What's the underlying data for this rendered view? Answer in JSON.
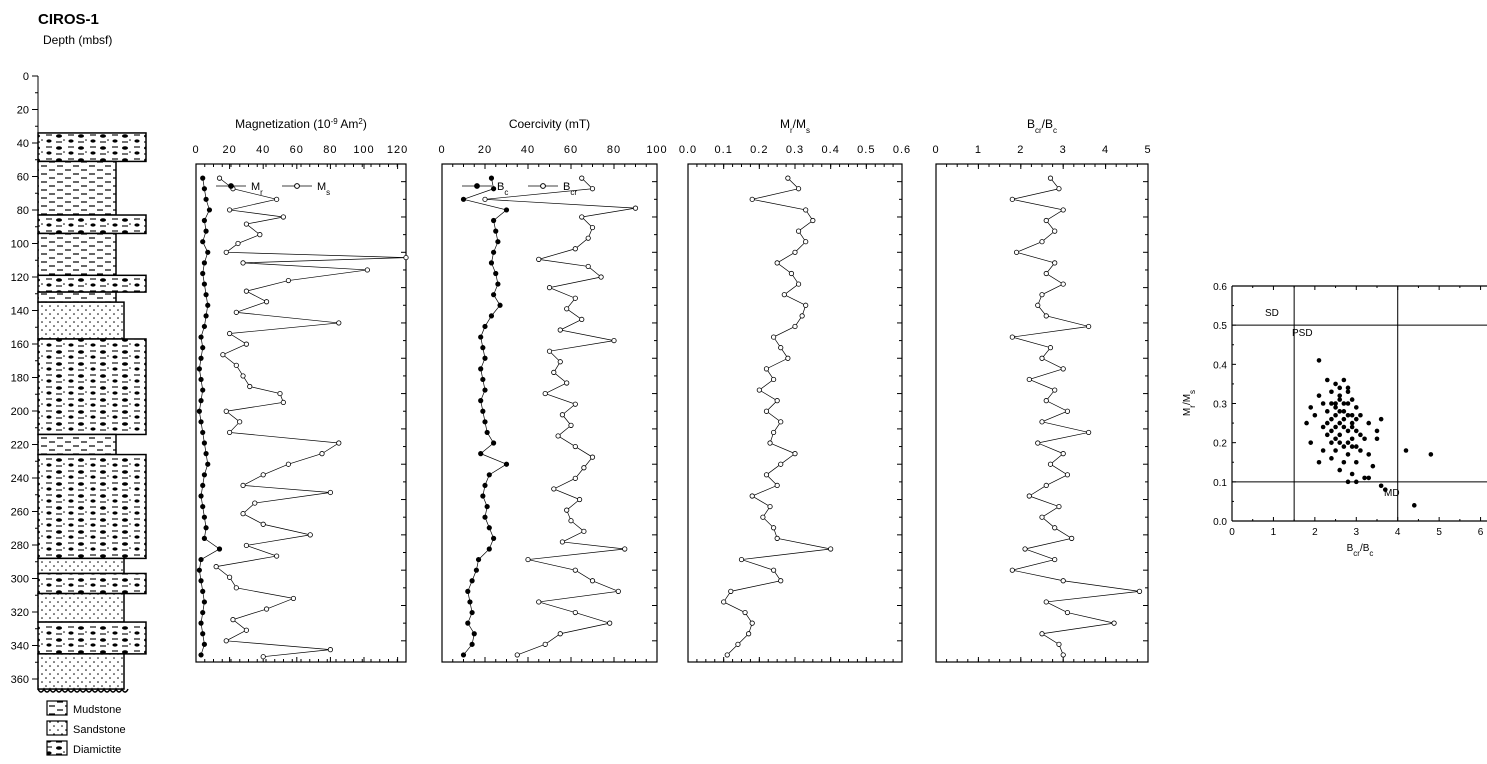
{
  "figure": {
    "site": "CIROS-1",
    "depth_label": "Depth (mbsf)",
    "depth_ticks": [
      "0",
      "20",
      "40",
      "60",
      "80",
      "100",
      "120",
      "140",
      "160",
      "180",
      "200",
      "220",
      "240",
      "260",
      "280",
      "300",
      "320",
      "340",
      "360"
    ]
  },
  "lithology": {
    "legend": [
      "Mudstone",
      "Sandstone",
      "Diamictite"
    ],
    "units": [
      {
        "top": 34,
        "bottom": 51,
        "type": "Diamictite"
      },
      {
        "top": 51,
        "bottom": 83,
        "type": "Mudstone"
      },
      {
        "top": 83,
        "bottom": 94,
        "type": "Diamictite"
      },
      {
        "top": 94,
        "bottom": 119,
        "type": "Mudstone"
      },
      {
        "top": 119,
        "bottom": 129,
        "type": "Diamictite"
      },
      {
        "top": 129,
        "bottom": 135,
        "type": "Mudstone"
      },
      {
        "top": 135,
        "bottom": 157,
        "type": "Sandstone"
      },
      {
        "top": 157,
        "bottom": 214,
        "type": "Diamictite"
      },
      {
        "top": 214,
        "bottom": 226,
        "type": "Mudstone"
      },
      {
        "top": 226,
        "bottom": 288,
        "type": "Diamictite"
      },
      {
        "top": 288,
        "bottom": 297,
        "type": "Sandstone"
      },
      {
        "top": 297,
        "bottom": 309,
        "type": "Diamictite"
      },
      {
        "top": 309,
        "bottom": 326,
        "type": "Sandstone"
      },
      {
        "top": 326,
        "bottom": 345,
        "type": "Diamictite"
      },
      {
        "top": 345,
        "bottom": 366,
        "type": "Sandstone"
      }
    ]
  },
  "chart_data": [
    {
      "type": "line",
      "title_html": "Magnetization",
      "title": "Magnetization (10-9 Am2)",
      "title_parts": {
        "main": "Magnetization  (10",
        "exp1": "-9",
        "mid": " Am",
        "exp2": "2",
        "end": ")"
      },
      "xlim": [
        0,
        125
      ],
      "x_ticks": [
        "0",
        "20",
        "40",
        "60",
        "80",
        "100",
        "120"
      ],
      "ylim": [
        0,
        365
      ],
      "series": [
        {
          "name": "Mr",
          "marker": "filled",
          "depth": [
            78,
            84,
            90,
            96,
            102,
            108,
            114,
            120,
            126,
            132,
            138,
            144,
            150,
            156,
            162,
            168,
            174,
            180,
            186,
            192,
            198,
            204,
            210,
            216,
            222,
            228,
            234,
            240,
            246,
            252,
            258,
            264,
            270,
            276,
            282,
            288,
            294,
            300,
            306,
            312,
            318,
            324,
            330,
            336,
            342,
            348
          ],
          "values": [
            4,
            5,
            6,
            8,
            5,
            6,
            4,
            7,
            5,
            4,
            5,
            6,
            7,
            6,
            5,
            3,
            4,
            3,
            2,
            3,
            4,
            3,
            2,
            3,
            4,
            5,
            6,
            7,
            5,
            4,
            3,
            4,
            5,
            6,
            5,
            14,
            3,
            2,
            3,
            4,
            5,
            4,
            3,
            4,
            5,
            3
          ]
        },
        {
          "name": "Ms",
          "marker": "open",
          "depth": [
            78,
            84,
            90,
            96,
            100,
            104,
            110,
            115,
            120,
            123,
            126,
            130,
            136,
            142,
            148,
            154,
            160,
            166,
            172,
            178,
            184,
            190,
            196,
            200,
            205,
            210,
            216,
            222,
            228,
            234,
            240,
            246,
            252,
            256,
            262,
            268,
            274,
            280,
            286,
            292,
            298,
            304,
            310,
            316,
            322,
            328,
            334,
            340,
            345,
            349
          ],
          "values": [
            14,
            22,
            48,
            20,
            52,
            30,
            38,
            25,
            18,
            125,
            28,
            102,
            55,
            30,
            42,
            24,
            85,
            20,
            30,
            16,
            24,
            28,
            32,
            50,
            52,
            18,
            26,
            20,
            85,
            75,
            55,
            40,
            28,
            80,
            35,
            28,
            40,
            68,
            30,
            48,
            12,
            20,
            24,
            58,
            42,
            22,
            30,
            18,
            80,
            40
          ]
        }
      ]
    },
    {
      "type": "line",
      "title": "Coercivity (mT)",
      "xlim": [
        0,
        100
      ],
      "x_ticks": [
        "0",
        "20",
        "40",
        "60",
        "80",
        "100"
      ],
      "ylim": [
        0,
        365
      ],
      "series": [
        {
          "name": "Bc",
          "marker": "filled",
          "depth": [
            78,
            84,
            90,
            96,
            102,
            108,
            114,
            120,
            126,
            132,
            138,
            144,
            150,
            156,
            162,
            168,
            174,
            180,
            186,
            192,
            198,
            204,
            210,
            216,
            222,
            228,
            234,
            240,
            246,
            252,
            258,
            264,
            270,
            276,
            282,
            288,
            294,
            300,
            306,
            312,
            318,
            324,
            330,
            336,
            342,
            348
          ],
          "values": [
            23,
            24,
            10,
            30,
            24,
            25,
            26,
            24,
            23,
            25,
            26,
            24,
            27,
            23,
            20,
            18,
            19,
            20,
            18,
            19,
            20,
            18,
            19,
            20,
            21,
            24,
            18,
            30,
            22,
            20,
            19,
            21,
            20,
            22,
            24,
            22,
            17,
            16,
            14,
            12,
            13,
            14,
            12,
            15,
            14,
            10
          ]
        },
        {
          "name": "Bcr",
          "marker": "open",
          "depth": [
            78,
            84,
            90,
            95,
            100,
            106,
            112,
            118,
            124,
            128,
            134,
            140,
            146,
            152,
            158,
            164,
            170,
            176,
            182,
            188,
            194,
            200,
            206,
            212,
            218,
            224,
            230,
            236,
            242,
            248,
            254,
            260,
            266,
            272,
            278,
            284,
            288,
            294,
            300,
            306,
            312,
            318,
            324,
            330,
            336,
            342,
            348
          ],
          "values": [
            65,
            70,
            20,
            90,
            65,
            70,
            68,
            62,
            45,
            68,
            74,
            50,
            62,
            58,
            65,
            55,
            80,
            50,
            55,
            52,
            58,
            48,
            62,
            56,
            60,
            54,
            62,
            70,
            66,
            62,
            52,
            64,
            58,
            60,
            66,
            56,
            85,
            40,
            62,
            70,
            82,
            45,
            62,
            78,
            55,
            48,
            35
          ]
        }
      ]
    },
    {
      "type": "line",
      "title_parts": {
        "a": "M",
        "as": "r",
        "b": "/M",
        "bs": "s"
      },
      "title": "Mr/Ms",
      "xlim": [
        0,
        0.6
      ],
      "x_ticks": [
        "0.0",
        "0.1",
        "0.2",
        "0.3",
        "0.4",
        "0.5",
        "0.6"
      ],
      "ylim": [
        0,
        365
      ],
      "series": [
        {
          "name": "Mr/Ms",
          "marker": "open",
          "depth": [
            78,
            84,
            90,
            96,
            102,
            108,
            114,
            120,
            126,
            132,
            138,
            144,
            150,
            156,
            162,
            168,
            174,
            180,
            186,
            192,
            198,
            204,
            210,
            216,
            222,
            228,
            234,
            240,
            246,
            252,
            258,
            264,
            270,
            276,
            282,
            288,
            294,
            300,
            306,
            312,
            318,
            324,
            330,
            336,
            342,
            348
          ],
          "values": [
            0.28,
            0.31,
            0.18,
            0.33,
            0.35,
            0.31,
            0.33,
            0.3,
            0.25,
            0.29,
            0.31,
            0.27,
            0.33,
            0.32,
            0.3,
            0.24,
            0.26,
            0.28,
            0.22,
            0.24,
            0.2,
            0.25,
            0.22,
            0.26,
            0.24,
            0.23,
            0.3,
            0.26,
            0.22,
            0.25,
            0.18,
            0.23,
            0.21,
            0.24,
            0.25,
            0.4,
            0.15,
            0.24,
            0.26,
            0.12,
            0.1,
            0.16,
            0.18,
            0.17,
            0.14,
            0.11
          ]
        }
      ]
    },
    {
      "type": "line",
      "title_parts": {
        "a": "B",
        "as": "cr",
        "b": "/B",
        "bs": "c"
      },
      "title": "Bcr/Bc",
      "xlim": [
        0,
        5
      ],
      "x_ticks": [
        "0",
        "1",
        "2",
        "3",
        "4",
        "5"
      ],
      "ylim": [
        0,
        365
      ],
      "series": [
        {
          "name": "Bcr/Bc",
          "marker": "open",
          "depth": [
            78,
            84,
            90,
            96,
            102,
            108,
            114,
            120,
            126,
            132,
            138,
            144,
            150,
            156,
            162,
            168,
            174,
            180,
            186,
            192,
            198,
            204,
            210,
            216,
            222,
            228,
            234,
            240,
            246,
            252,
            258,
            264,
            270,
            276,
            282,
            288,
            294,
            300,
            306,
            312,
            318,
            324,
            330,
            336,
            342,
            348
          ],
          "values": [
            2.7,
            2.9,
            1.8,
            3.0,
            2.6,
            2.8,
            2.5,
            1.9,
            2.8,
            2.6,
            3.0,
            2.5,
            2.4,
            2.6,
            3.6,
            1.8,
            2.7,
            2.5,
            3.0,
            2.2,
            2.8,
            2.6,
            3.1,
            2.5,
            3.6,
            2.4,
            3.0,
            2.7,
            3.1,
            2.6,
            2.2,
            2.9,
            2.5,
            2.8,
            3.2,
            2.1,
            2.8,
            1.8,
            3.0,
            4.8,
            2.6,
            3.1,
            4.2,
            2.5,
            2.9,
            3.0
          ]
        }
      ]
    },
    {
      "type": "scatter",
      "title": "",
      "xlabel_parts": {
        "a": "B",
        "as": "cr",
        "b": "/B",
        "bs": "c"
      },
      "ylabel_parts": {
        "a": "M",
        "as": "r",
        "b": "/M",
        "bs": "s"
      },
      "xlim": [
        0,
        7
      ],
      "ylim": [
        0,
        0.6
      ],
      "x_ticks": [
        "0",
        "1",
        "2",
        "3",
        "4",
        "5",
        "6"
      ],
      "y_ticks": [
        "0.0",
        "0.1",
        "0.2",
        "0.3",
        "0.4",
        "0.5",
        "0.6"
      ],
      "region_labels": [
        "SD",
        "PSD",
        "MD"
      ],
      "lines": {
        "x": [
          1.5,
          4.0
        ],
        "y": [
          0.5,
          0.1
        ]
      },
      "points": [
        [
          2.1,
          0.41
        ],
        [
          2.3,
          0.36
        ],
        [
          2.5,
          0.35
        ],
        [
          2.7,
          0.36
        ],
        [
          2.8,
          0.34
        ],
        [
          2.4,
          0.33
        ],
        [
          2.6,
          0.32
        ],
        [
          2.9,
          0.31
        ],
        [
          2.2,
          0.3
        ],
        [
          2.5,
          0.3
        ],
        [
          2.7,
          0.3
        ],
        [
          3.0,
          0.29
        ],
        [
          2.3,
          0.28
        ],
        [
          2.6,
          0.28
        ],
        [
          2.8,
          0.27
        ],
        [
          3.1,
          0.27
        ],
        [
          2.0,
          0.27
        ],
        [
          2.4,
          0.26
        ],
        [
          2.7,
          0.26
        ],
        [
          2.9,
          0.25
        ],
        [
          3.3,
          0.25
        ],
        [
          1.8,
          0.25
        ],
        [
          2.2,
          0.24
        ],
        [
          2.5,
          0.24
        ],
        [
          2.8,
          0.23
        ],
        [
          3.0,
          0.23
        ],
        [
          3.5,
          0.23
        ],
        [
          2.3,
          0.22
        ],
        [
          2.6,
          0.22
        ],
        [
          2.9,
          0.21
        ],
        [
          3.2,
          0.21
        ],
        [
          1.9,
          0.2
        ],
        [
          2.4,
          0.2
        ],
        [
          2.7,
          0.19
        ],
        [
          3.0,
          0.19
        ],
        [
          2.2,
          0.18
        ],
        [
          2.5,
          0.18
        ],
        [
          2.8,
          0.17
        ],
        [
          3.3,
          0.17
        ],
        [
          4.2,
          0.18
        ],
        [
          4.8,
          0.17
        ],
        [
          2.4,
          0.16
        ],
        [
          2.7,
          0.15
        ],
        [
          3.0,
          0.15
        ],
        [
          2.1,
          0.15
        ],
        [
          3.4,
          0.14
        ],
        [
          2.6,
          0.13
        ],
        [
          2.9,
          0.12
        ],
        [
          3.2,
          0.11
        ],
        [
          2.8,
          0.1
        ],
        [
          3.0,
          0.1
        ],
        [
          3.3,
          0.11
        ],
        [
          3.6,
          0.09
        ],
        [
          3.7,
          0.08
        ],
        [
          4.4,
          0.04
        ],
        [
          2.5,
          0.29
        ],
        [
          2.6,
          0.31
        ],
        [
          2.7,
          0.28
        ],
        [
          2.8,
          0.3
        ],
        [
          2.9,
          0.27
        ],
        [
          2.5,
          0.27
        ],
        [
          2.6,
          0.25
        ],
        [
          2.7,
          0.24
        ],
        [
          2.9,
          0.24
        ],
        [
          3.1,
          0.22
        ],
        [
          2.3,
          0.25
        ],
        [
          2.5,
          0.21
        ],
        [
          2.6,
          0.2
        ],
        [
          2.8,
          0.2
        ],
        [
          3.1,
          0.18
        ],
        [
          2.4,
          0.23
        ],
        [
          2.9,
          0.19
        ],
        [
          3.5,
          0.21
        ],
        [
          3.6,
          0.26
        ],
        [
          1.9,
          0.29
        ],
        [
          2.1,
          0.32
        ],
        [
          2.6,
          0.34
        ],
        [
          2.8,
          0.33
        ],
        [
          2.4,
          0.3
        ],
        [
          3.0,
          0.26
        ]
      ]
    }
  ]
}
